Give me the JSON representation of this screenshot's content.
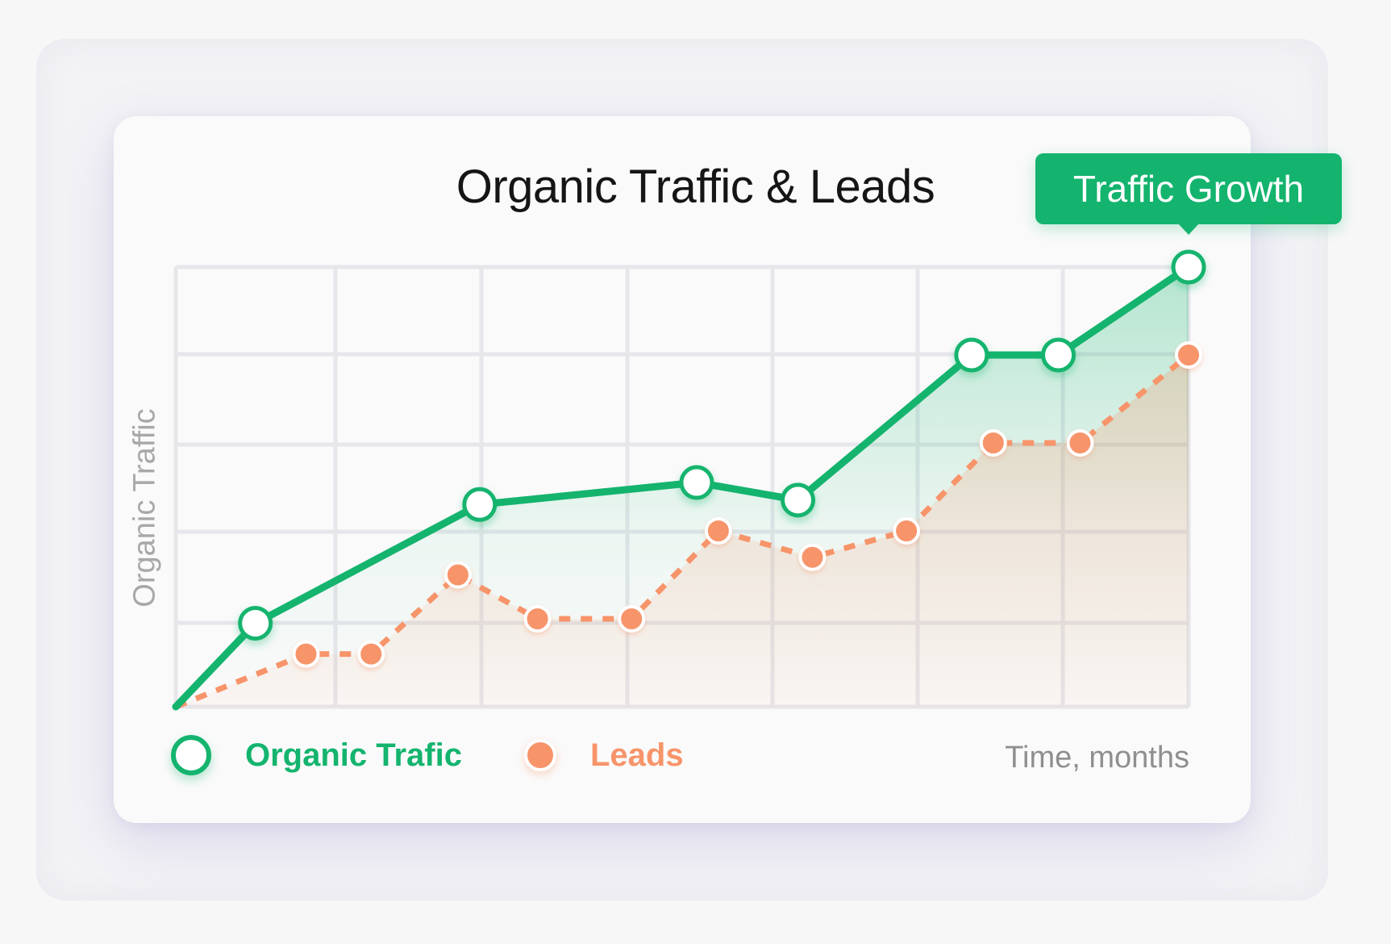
{
  "chart_data": {
    "type": "line",
    "title": "Organic Traffic & Leads",
    "xlabel": "Time, months",
    "ylabel": "Organic Traffic",
    "grid": true,
    "legend": "bottom-left",
    "x_range": [
      0,
      14
    ],
    "ylim": [
      0,
      5
    ],
    "series": [
      {
        "name": "Organic Trafic",
        "color": "#14b46e",
        "style": "solid",
        "marker": "hollow-circle",
        "x": [
          0,
          1.1,
          4.2,
          7.2,
          8.6,
          11.0,
          12.2,
          14.0
        ],
        "y": [
          0,
          0.95,
          2.3,
          2.55,
          2.35,
          4.0,
          4.0,
          5.0
        ]
      },
      {
        "name": "Leads",
        "color": "#f7946a",
        "style": "dashed",
        "marker": "filled-circle",
        "x": [
          0,
          1.8,
          2.7,
          3.9,
          5.0,
          6.3,
          7.5,
          8.8,
          10.1,
          11.3,
          12.5,
          14.0
        ],
        "y": [
          0,
          0.6,
          0.6,
          1.5,
          1.0,
          1.0,
          2.0,
          1.7,
          2.0,
          3.0,
          3.0,
          4.0
        ]
      }
    ],
    "annotations": [
      {
        "text": "Traffic Growth",
        "series": "Organic Trafic",
        "point_index": 7
      }
    ]
  }
}
